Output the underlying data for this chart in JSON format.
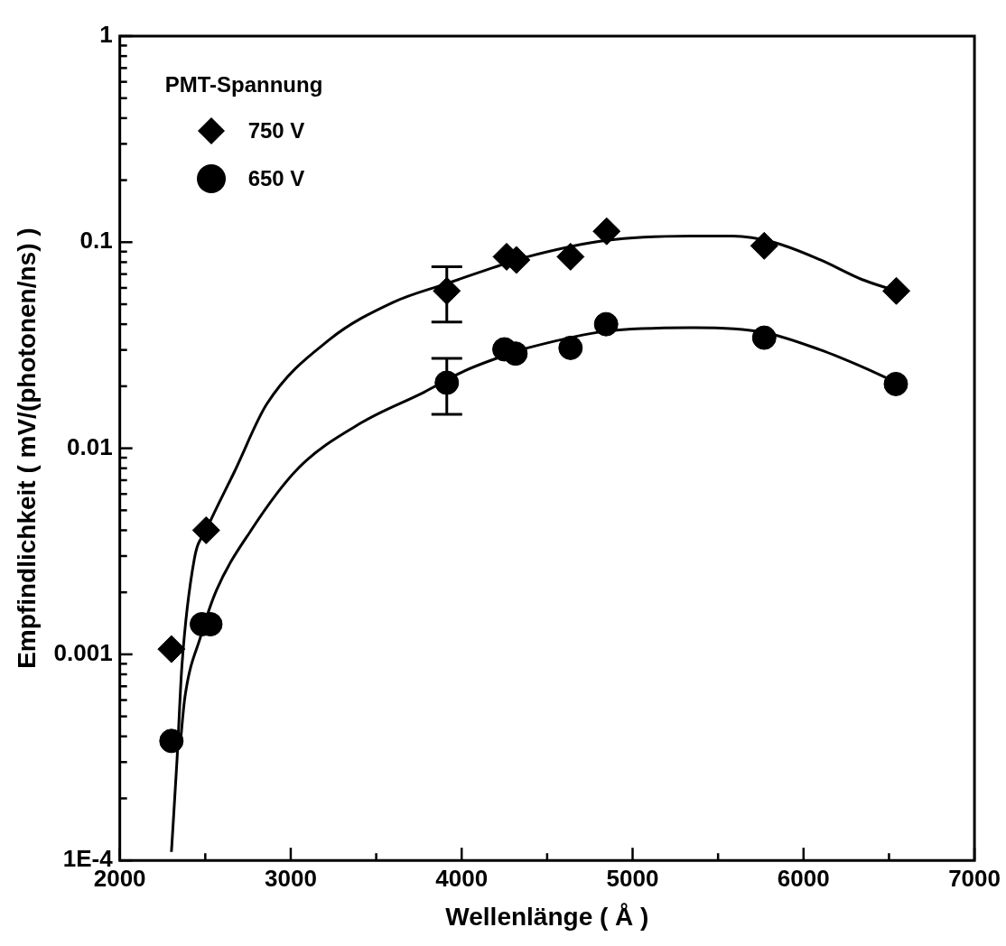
{
  "chart_data": {
    "type": "scatter",
    "xlabel": "Wellenlänge ( Å )",
    "ylabel": "Empfindlichkeit ( mV/(photonen/ns) )",
    "legend_title": "PMT-Spannung",
    "legend": "top left",
    "log": "y",
    "grid": false,
    "xlim": [
      2000,
      7000
    ],
    "xticks": [
      2000,
      {
        "value": 2500,
        "label": null
      },
      3000,
      {
        "value": 3500,
        "label": null
      },
      4000,
      {
        "value": 4500,
        "label": null
      },
      5000,
      {
        "value": 5500,
        "label": null
      },
      6000,
      {
        "value": 6500,
        "label": null
      },
      7000
    ],
    "ylim": [
      0.0001,
      1
    ],
    "yticks": [
      {
        "value": 0.0001,
        "label": "1E-4"
      },
      {
        "value": 0.0002,
        "label": null
      },
      {
        "value": 0.0003,
        "label": null
      },
      {
        "value": 0.0004,
        "label": null
      },
      {
        "value": 0.0005,
        "label": null
      },
      {
        "value": 0.0006,
        "label": null
      },
      {
        "value": 0.0007,
        "label": null
      },
      {
        "value": 0.0008,
        "label": null
      },
      {
        "value": 0.0009,
        "label": null
      },
      0.001,
      {
        "value": 0.002,
        "label": null
      },
      {
        "value": 0.003,
        "label": null
      },
      {
        "value": 0.004,
        "label": null
      },
      {
        "value": 0.005,
        "label": null
      },
      {
        "value": 0.006,
        "label": null
      },
      {
        "value": 0.007,
        "label": null
      },
      {
        "value": 0.008,
        "label": null
      },
      {
        "value": 0.009,
        "label": null
      },
      0.01,
      {
        "value": 0.02,
        "label": null
      },
      {
        "value": 0.03,
        "label": null
      },
      {
        "value": 0.04,
        "label": null
      },
      {
        "value": 0.05,
        "label": null
      },
      {
        "value": 0.06,
        "label": null
      },
      {
        "value": 0.07,
        "label": null
      },
      {
        "value": 0.08,
        "label": null
      },
      {
        "value": 0.09,
        "label": null
      },
      0.1,
      {
        "value": 0.2,
        "label": null
      },
      {
        "value": 0.3,
        "label": null
      },
      {
        "value": 0.4,
        "label": null
      },
      {
        "value": 0.5,
        "label": null
      },
      {
        "value": 0.6,
        "label": null
      },
      {
        "value": 0.7,
        "label": null
      },
      {
        "value": 0.8,
        "label": null
      },
      {
        "value": 0.9,
        "label": null
      },
      1
    ],
    "series": [
      {
        "type": "line",
        "color": "#000000",
        "marker": "none",
        "x": [
          2302,
          2335,
          2363,
          2436,
          2505,
          2674,
          2860,
          3227,
          3597,
          3912,
          4263,
          4387,
          4848,
          5365,
          5586,
          5823,
          6099,
          6340,
          6543
        ],
        "values": [
          0.00011,
          0.00031,
          0.00087,
          0.0029,
          0.004,
          0.0078,
          0.0164,
          0.0337,
          0.051,
          0.063,
          0.079,
          0.085,
          0.102,
          0.107,
          0.107,
          0.1,
          0.082,
          0.066,
          0.058
        ]
      },
      {
        "type": "line",
        "color": "#000000",
        "marker": "none",
        "x": [
          2354,
          2381,
          2473,
          2565,
          2768,
          3044,
          3413,
          3779,
          4020,
          4331,
          4387,
          4848,
          5365,
          5768,
          6099,
          6340,
          6540
        ],
        "values": [
          0.00037,
          0.00062,
          0.00122,
          0.00204,
          0.004,
          0.008,
          0.0133,
          0.0187,
          0.0238,
          0.0297,
          0.0307,
          0.037,
          0.0385,
          0.0365,
          0.03,
          0.0249,
          0.0209
        ]
      },
      {
        "type": "scatter",
        "name": "750 V",
        "color": "#000000",
        "marker": "diamond",
        "x": [
          2302,
          2505,
          3913,
          4263,
          4320,
          4637,
          4848,
          5770,
          6543
        ],
        "values": [
          0.00106,
          0.004,
          0.058,
          0.085,
          0.082,
          0.085,
          0.113,
          0.096,
          0.058
        ],
        "errors": [
          null,
          null,
          [
            0.041,
            0.076
          ],
          null,
          null,
          null,
          null,
          null,
          null
        ]
      },
      {
        "type": "scatter",
        "name": "650 V",
        "color": "#000000",
        "marker": "circle",
        "x": [
          2302,
          2480,
          2530,
          3913,
          4250,
          4315,
          4637,
          4845,
          5770,
          6540
        ],
        "values": [
          0.00038,
          0.0014,
          0.0014,
          0.0208,
          0.0302,
          0.0288,
          0.0307,
          0.04,
          0.0344,
          0.0205
        ],
        "errors": [
          null,
          null,
          null,
          [
            0.0146,
            0.0273
          ],
          null,
          null,
          null,
          null,
          null,
          null
        ]
      }
    ]
  }
}
